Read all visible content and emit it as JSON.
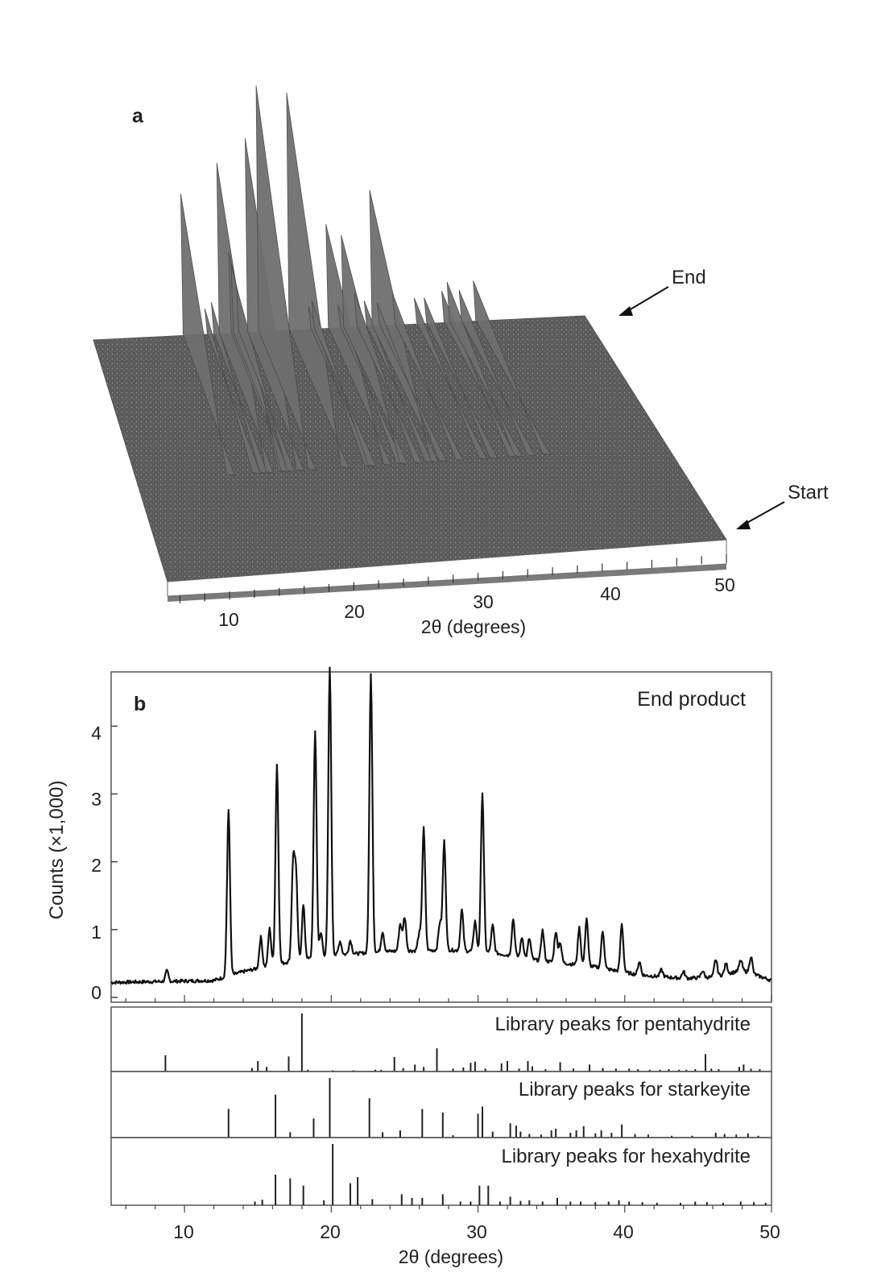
{
  "panel_a": {
    "label": "a",
    "xlabel": "2θ (degrees)",
    "ticks": [
      "10",
      "20",
      "30",
      "40",
      "50"
    ],
    "end_label": "End",
    "start_label": "Start",
    "colors": {
      "surface": "#6f6f6f",
      "floor": "#5a5a5a",
      "base": "#ffffff"
    }
  },
  "chart_data": [
    {
      "type": "line",
      "panel": "b",
      "label": "b",
      "annotation": "End product",
      "xlabel": "2θ (degrees)",
      "ylabel": "Counts (×1,000)",
      "xlim": [
        5,
        50
      ],
      "ylim": [
        0,
        4.8
      ],
      "yticks": [
        "0",
        "1",
        "2",
        "3",
        "4"
      ],
      "xticks": [
        "10",
        "20",
        "30",
        "40",
        "50"
      ],
      "baseline": [
        [
          5,
          0.22
        ],
        [
          12,
          0.25
        ],
        [
          14,
          0.38
        ],
        [
          17,
          0.52
        ],
        [
          20,
          0.62
        ],
        [
          24,
          0.68
        ],
        [
          28,
          0.7
        ],
        [
          31,
          0.66
        ],
        [
          34,
          0.55
        ],
        [
          38,
          0.45
        ],
        [
          41,
          0.33
        ],
        [
          44,
          0.28
        ],
        [
          46,
          0.3
        ],
        [
          48,
          0.4
        ],
        [
          50,
          0.25
        ]
      ],
      "peaks": [
        [
          8.8,
          0.15
        ],
        [
          13.0,
          2.45
        ],
        [
          15.2,
          0.45
        ],
        [
          15.8,
          0.55
        ],
        [
          16.3,
          2.95
        ],
        [
          17.4,
          1.4
        ],
        [
          17.6,
          1.2
        ],
        [
          18.1,
          0.8
        ],
        [
          18.9,
          3.35
        ],
        [
          19.3,
          0.35
        ],
        [
          19.9,
          4.25
        ],
        [
          20.6,
          0.2
        ],
        [
          21.3,
          0.2
        ],
        [
          22.7,
          4.1
        ],
        [
          23.5,
          0.3
        ],
        [
          24.7,
          0.4
        ],
        [
          25.0,
          0.5
        ],
        [
          26.0,
          0.25
        ],
        [
          26.3,
          1.8
        ],
        [
          27.4,
          0.4
        ],
        [
          27.7,
          1.6
        ],
        [
          28.9,
          0.6
        ],
        [
          29.8,
          0.45
        ],
        [
          30.3,
          2.35
        ],
        [
          31.0,
          0.4
        ],
        [
          32.4,
          0.55
        ],
        [
          33.0,
          0.3
        ],
        [
          33.5,
          0.3
        ],
        [
          34.4,
          0.45
        ],
        [
          35.3,
          0.45
        ],
        [
          35.6,
          0.3
        ],
        [
          36.9,
          0.55
        ],
        [
          37.4,
          0.7
        ],
        [
          38.5,
          0.55
        ],
        [
          39.8,
          0.7
        ],
        [
          41.0,
          0.2
        ],
        [
          42.5,
          0.1
        ],
        [
          44.0,
          0.1
        ],
        [
          45.3,
          0.1
        ],
        [
          46.2,
          0.25
        ],
        [
          46.9,
          0.15
        ],
        [
          47.9,
          0.15
        ],
        [
          48.6,
          0.25
        ]
      ]
    },
    {
      "type": "bar",
      "panel": "pentahydrite",
      "label": "Library peaks for pentahydrite",
      "xlim": [
        5,
        50
      ],
      "ylim": [
        0,
        100
      ],
      "lines": [
        [
          8.7,
          28
        ],
        [
          14.6,
          6
        ],
        [
          15.0,
          18
        ],
        [
          15.6,
          8
        ],
        [
          17.1,
          26
        ],
        [
          18.0,
          100
        ],
        [
          18.4,
          3
        ],
        [
          20.1,
          2
        ],
        [
          21.5,
          2
        ],
        [
          23.0,
          3
        ],
        [
          23.4,
          3
        ],
        [
          24.3,
          25
        ],
        [
          24.9,
          6
        ],
        [
          25.7,
          12
        ],
        [
          26.3,
          8
        ],
        [
          27.2,
          40
        ],
        [
          28.3,
          5
        ],
        [
          29.0,
          7
        ],
        [
          29.5,
          15
        ],
        [
          29.8,
          17
        ],
        [
          30.5,
          5
        ],
        [
          31.6,
          14
        ],
        [
          32.0,
          18
        ],
        [
          32.8,
          5
        ],
        [
          33.4,
          18
        ],
        [
          33.7,
          9
        ],
        [
          34.6,
          4
        ],
        [
          35.6,
          16
        ],
        [
          36.5,
          5
        ],
        [
          37.6,
          12
        ],
        [
          38.5,
          6
        ],
        [
          39.4,
          5
        ],
        [
          40.3,
          5
        ],
        [
          40.9,
          4
        ],
        [
          41.7,
          3
        ],
        [
          42.4,
          3
        ],
        [
          43.0,
          4
        ],
        [
          43.7,
          3
        ],
        [
          44.2,
          3
        ],
        [
          44.8,
          4
        ],
        [
          45.5,
          30
        ],
        [
          45.9,
          5
        ],
        [
          46.4,
          4
        ],
        [
          47.8,
          8
        ],
        [
          48.1,
          12
        ],
        [
          48.6,
          5
        ],
        [
          49.2,
          4
        ]
      ]
    },
    {
      "type": "bar",
      "panel": "starkeyite",
      "label": "Library peaks for starkeyite",
      "xlim": [
        5,
        50
      ],
      "ylim": [
        0,
        100
      ],
      "lines": [
        [
          13.0,
          48
        ],
        [
          16.2,
          72
        ],
        [
          17.2,
          9
        ],
        [
          18.8,
          32
        ],
        [
          19.9,
          100
        ],
        [
          22.6,
          66
        ],
        [
          23.5,
          9
        ],
        [
          24.7,
          12
        ],
        [
          26.2,
          48
        ],
        [
          27.6,
          42
        ],
        [
          28.3,
          4
        ],
        [
          30.0,
          40
        ],
        [
          30.3,
          52
        ],
        [
          31.0,
          10
        ],
        [
          32.2,
          24
        ],
        [
          32.6,
          20
        ],
        [
          32.9,
          10
        ],
        [
          33.5,
          6
        ],
        [
          34.3,
          5
        ],
        [
          35.0,
          12
        ],
        [
          35.3,
          15
        ],
        [
          36.3,
          8
        ],
        [
          36.7,
          12
        ],
        [
          37.2,
          19
        ],
        [
          38.0,
          7
        ],
        [
          38.4,
          12
        ],
        [
          39.1,
          8
        ],
        [
          39.8,
          22
        ],
        [
          40.7,
          6
        ],
        [
          41.6,
          5
        ],
        [
          43.2,
          3
        ],
        [
          44.6,
          3
        ],
        [
          46.2,
          8
        ],
        [
          46.8,
          6
        ],
        [
          47.6,
          5
        ],
        [
          48.4,
          7
        ],
        [
          49.1,
          3
        ]
      ]
    },
    {
      "type": "bar",
      "panel": "hexahydrite",
      "label": "Library peaks for hexahydrite",
      "xlim": [
        5,
        50
      ],
      "ylim": [
        0,
        100
      ],
      "lines": [
        [
          14.8,
          6
        ],
        [
          15.3,
          9
        ],
        [
          16.2,
          50
        ],
        [
          17.2,
          44
        ],
        [
          18.1,
          32
        ],
        [
          19.5,
          8
        ],
        [
          20.1,
          100
        ],
        [
          21.3,
          36
        ],
        [
          21.8,
          46
        ],
        [
          22.8,
          10
        ],
        [
          24.8,
          18
        ],
        [
          25.5,
          12
        ],
        [
          26.2,
          12
        ],
        [
          27.6,
          18
        ],
        [
          28.8,
          6
        ],
        [
          29.5,
          6
        ],
        [
          30.1,
          32
        ],
        [
          30.7,
          32
        ],
        [
          31.5,
          6
        ],
        [
          32.2,
          14
        ],
        [
          32.9,
          7
        ],
        [
          33.5,
          8
        ],
        [
          34.4,
          6
        ],
        [
          35.4,
          12
        ],
        [
          36.3,
          6
        ],
        [
          37.0,
          6
        ],
        [
          38.0,
          5
        ],
        [
          38.9,
          6
        ],
        [
          39.6,
          8
        ],
        [
          40.3,
          6
        ],
        [
          41.2,
          5
        ],
        [
          42.2,
          4
        ],
        [
          43.8,
          4
        ],
        [
          44.8,
          6
        ],
        [
          45.6,
          5
        ],
        [
          46.7,
          4
        ],
        [
          47.9,
          6
        ],
        [
          48.8,
          5
        ],
        [
          49.6,
          4
        ]
      ]
    }
  ]
}
